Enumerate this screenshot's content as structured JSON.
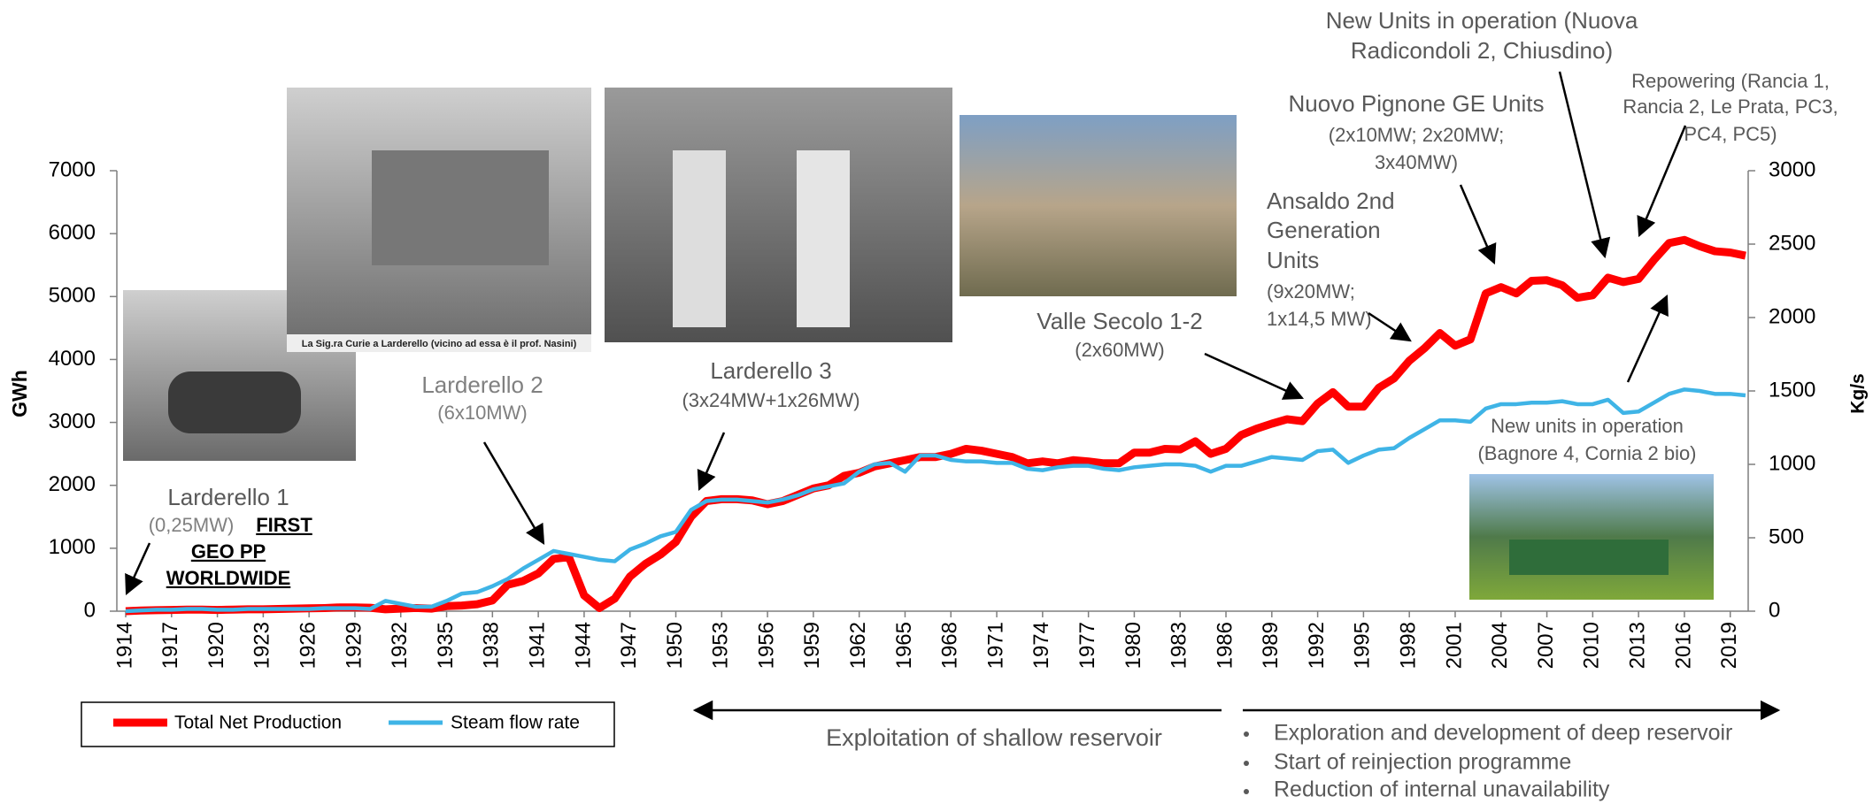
{
  "chart_data": {
    "type": "line",
    "y_label": "GWh",
    "y2_label": "Kg/s",
    "xlim": [
      1914,
      2020
    ],
    "xticks": [
      1914,
      1917,
      1920,
      1923,
      1926,
      1929,
      1932,
      1935,
      1938,
      1941,
      1944,
      1947,
      1950,
      1953,
      1956,
      1959,
      1962,
      1965,
      1968,
      1971,
      1974,
      1977,
      1980,
      1983,
      1986,
      1989,
      1992,
      1995,
      1998,
      2001,
      2004,
      2007,
      2010,
      2013,
      2016,
      2019
    ],
    "ylim": [
      0,
      7000
    ],
    "yticks": [
      0,
      1000,
      2000,
      3000,
      4000,
      5000,
      6000,
      7000
    ],
    "y2lim": [
      0,
      3000
    ],
    "y2ticks": [
      0,
      500,
      1000,
      1500,
      2000,
      2500,
      3000
    ],
    "x": [
      1914,
      1915,
      1916,
      1917,
      1918,
      1919,
      1920,
      1921,
      1922,
      1923,
      1924,
      1925,
      1926,
      1927,
      1928,
      1929,
      1930,
      1931,
      1932,
      1933,
      1934,
      1935,
      1936,
      1937,
      1938,
      1939,
      1940,
      1941,
      1942,
      1943,
      1944,
      1945,
      1946,
      1947,
      1948,
      1949,
      1950,
      1951,
      1952,
      1953,
      1954,
      1955,
      1956,
      1957,
      1958,
      1959,
      1960,
      1961,
      1962,
      1963,
      1964,
      1965,
      1966,
      1967,
      1968,
      1969,
      1970,
      1971,
      1972,
      1973,
      1974,
      1975,
      1976,
      1977,
      1978,
      1979,
      1980,
      1981,
      1982,
      1983,
      1984,
      1985,
      1986,
      1987,
      1988,
      1989,
      1990,
      1991,
      1992,
      1993,
      1994,
      1995,
      1996,
      1997,
      1998,
      1999,
      2000,
      2001,
      2002,
      2003,
      2004,
      2005,
      2006,
      2007,
      2008,
      2009,
      2010,
      2011,
      2012,
      2013,
      2014,
      2015,
      2016,
      2017,
      2018,
      2019,
      2020
    ],
    "series": [
      {
        "name": "Total Net Production",
        "color": "#ff0000",
        "axis": "y",
        "values": [
          0,
          10,
          15,
          20,
          25,
          25,
          20,
          25,
          30,
          30,
          35,
          40,
          45,
          50,
          60,
          60,
          55,
          30,
          40,
          50,
          40,
          80,
          90,
          110,
          170,
          420,
          480,
          600,
          830,
          860,
          250,
          50,
          200,
          550,
          750,
          900,
          1100,
          1500,
          1750,
          1780,
          1780,
          1760,
          1700,
          1750,
          1850,
          1950,
          2000,
          2150,
          2200,
          2300,
          2350,
          2400,
          2450,
          2450,
          2500,
          2580,
          2550,
          2500,
          2450,
          2350,
          2380,
          2350,
          2400,
          2380,
          2350,
          2350,
          2520,
          2520,
          2580,
          2570,
          2700,
          2500,
          2580,
          2800,
          2900,
          2980,
          3050,
          3020,
          3300,
          3480,
          3250,
          3250,
          3550,
          3700,
          3980,
          4180,
          4420,
          4220,
          4320,
          5050,
          5150,
          5050,
          5250,
          5260,
          5180,
          4980,
          5020,
          5300,
          5230,
          5280,
          5580,
          5850,
          5900,
          5800,
          5720,
          5700,
          5650
        ]
      },
      {
        "name": "Steam flow rate",
        "color": "#3fb4e6",
        "axis": "y2",
        "values": [
          0,
          5,
          10,
          10,
          15,
          15,
          10,
          10,
          15,
          15,
          15,
          15,
          15,
          20,
          20,
          20,
          15,
          70,
          50,
          30,
          30,
          70,
          120,
          130,
          170,
          220,
          290,
          350,
          410,
          390,
          370,
          350,
          340,
          420,
          460,
          510,
          540,
          690,
          750,
          760,
          760,
          750,
          740,
          760,
          790,
          830,
          850,
          870,
          950,
          1000,
          1010,
          950,
          1060,
          1060,
          1030,
          1020,
          1020,
          1010,
          1010,
          970,
          960,
          980,
          990,
          990,
          970,
          960,
          980,
          990,
          1000,
          1000,
          990,
          950,
          990,
          990,
          1020,
          1050,
          1040,
          1030,
          1090,
          1100,
          1010,
          1060,
          1100,
          1110,
          1180,
          1240,
          1300,
          1300,
          1290,
          1380,
          1410,
          1410,
          1420,
          1420,
          1430,
          1410,
          1410,
          1440,
          1350,
          1360,
          1420,
          1480,
          1510,
          1500,
          1480,
          1480,
          1470
        ]
      }
    ],
    "annotations": [
      {
        "lines": [
          "Larderello 1",
          "(0,25MW)",
          "FIRST",
          "GEO PP",
          "WORLDWIDE"
        ]
      },
      {
        "lines": [
          "Larderello 2",
          "(6x10MW)"
        ]
      },
      {
        "lines": [
          "Larderello 3",
          "(3x24MW+1x26MW)"
        ]
      },
      {
        "lines": [
          "Valle Secolo 1-2",
          "(2x60MW)"
        ]
      },
      {
        "lines": [
          "Ansaldo 2nd",
          "Generation",
          "Units",
          "(9x20MW;",
          "1x14,5 MW)"
        ]
      },
      {
        "lines": [
          "Nuovo Pignone GE Units",
          "(2x10MW; 2x20MW;",
          "3x40MW)"
        ]
      },
      {
        "lines": [
          "New Units in operation (Nuova",
          "Radicondoli 2, Chiusdino)"
        ]
      },
      {
        "lines": [
          "Repowering (Rancia 1,",
          "Rancia 2, Le Prata, PC3,",
          "PC4, PC5)"
        ]
      },
      {
        "lines": [
          "New units in operation",
          "(Bagnore 4, Cornia 2 bio)"
        ]
      }
    ],
    "photo_caption": "La Sig.ra Curie a Larderello (vicino ad essa è il prof. Nasini)",
    "periods": [
      {
        "lines": [
          "Exploitation of shallow reservoir"
        ]
      },
      {
        "lines": [
          "Exploration and development of deep reservoir",
          "Start of reinjection programme",
          "Reduction of internal unavailability"
        ]
      }
    ]
  }
}
